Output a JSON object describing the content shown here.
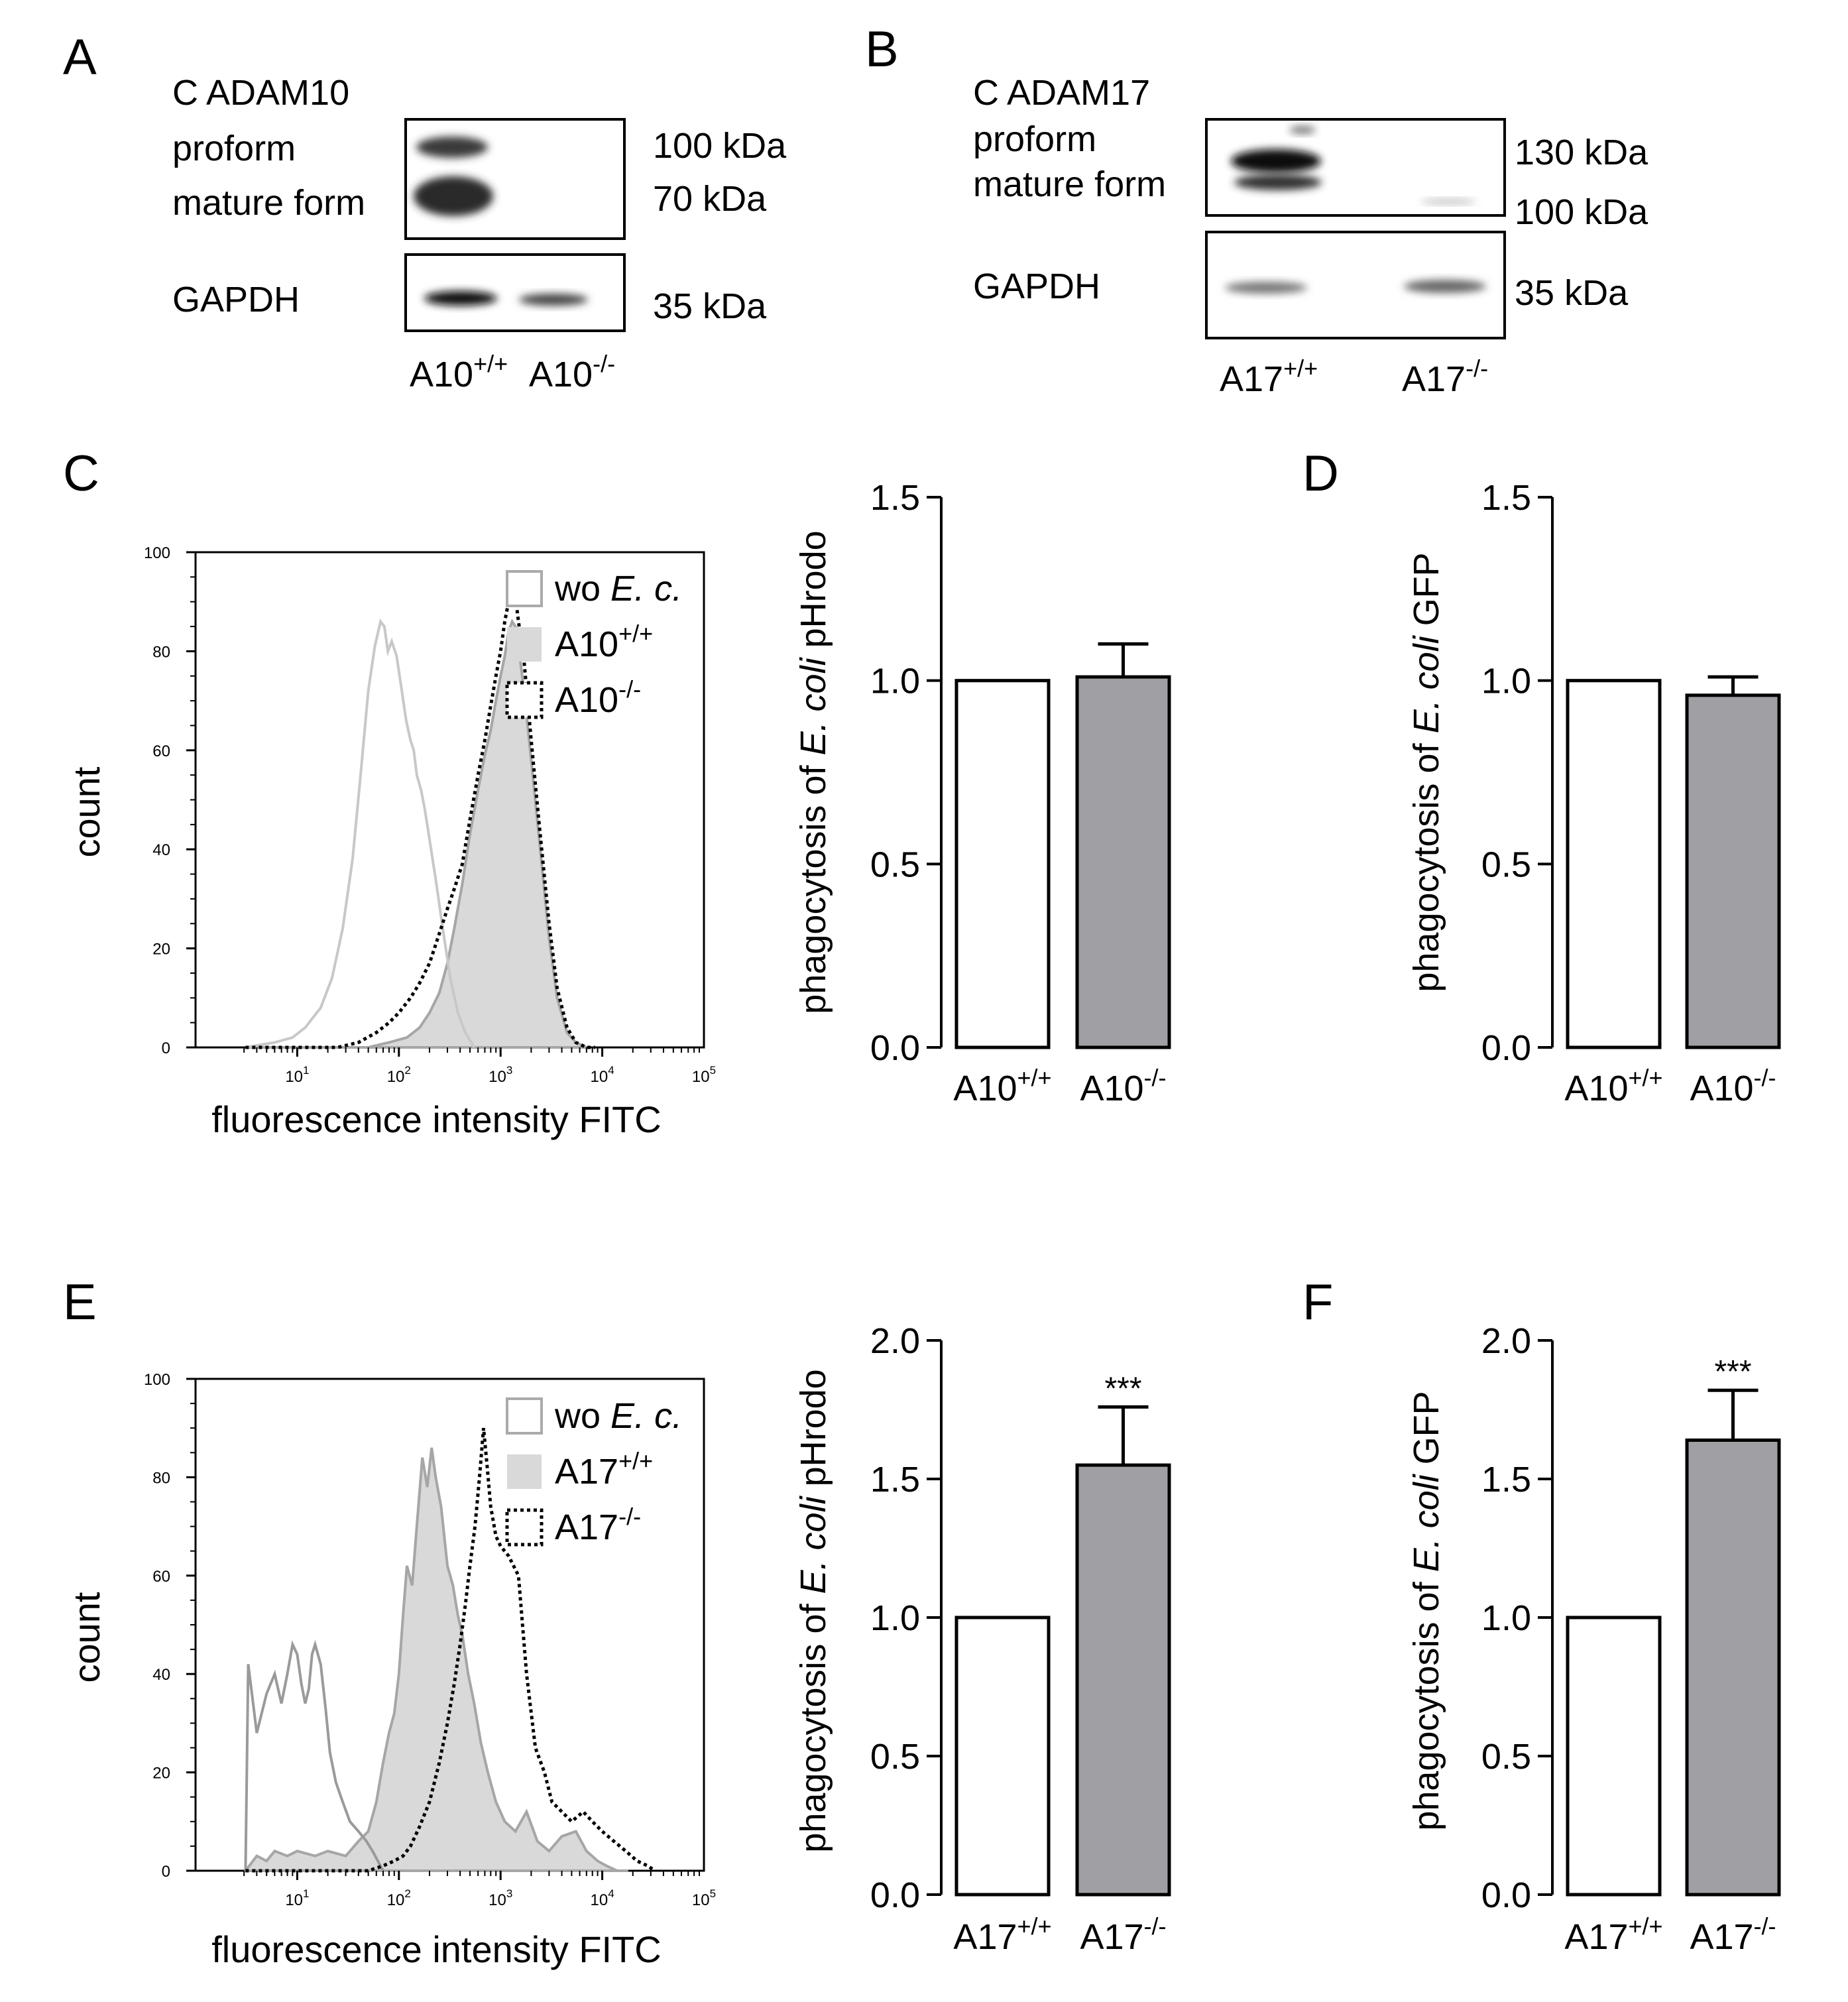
{
  "panels": {
    "A": {
      "letter": "A",
      "title": "C ADAM10",
      "band_labels": [
        "proform",
        "mature form"
      ],
      "loading_label": "GAPDH",
      "kda_upper": [
        "100 kDa",
        "70 kDa"
      ],
      "kda_lower": "35 kDa",
      "lanes": [
        {
          "base": "A10",
          "sup": "+/+"
        },
        {
          "base": "A10",
          "sup": "-/-"
        }
      ]
    },
    "B": {
      "letter": "B",
      "title": "C ADAM17",
      "band_labels": [
        "proform",
        "mature form"
      ],
      "loading_label": "GAPDH",
      "kda_upper": [
        "130 kDa",
        "100 kDa"
      ],
      "kda_lower": "35 kDa",
      "lanes": [
        {
          "base": "A17",
          "sup": "+/+"
        },
        {
          "base": "A17",
          "sup": "-/-"
        }
      ]
    }
  },
  "colors": {
    "bar_wt": "#ffffff",
    "bar_ko": "#a0a0a4",
    "hist_fill": "#d9d9d9",
    "hist_line": "#a6a6a6",
    "wo_line": "#c8c8c8",
    "wo_line_e": "#9a9a9a"
  },
  "chart_data": [
    {
      "id": "C-hist",
      "type": "area",
      "panel": "C",
      "xlabel": "fluorescence intensity FITC",
      "ylabel": "count",
      "xscale": "log",
      "xlim": [
        1,
        100000
      ],
      "ylim": [
        0,
        100
      ],
      "yticks": [
        0,
        20,
        40,
        60,
        80,
        100
      ],
      "xticks": [
        {
          "base": "10",
          "exp": "1"
        },
        {
          "base": "10",
          "exp": "2"
        },
        {
          "base": "10",
          "exp": "3"
        },
        {
          "base": "10",
          "exp": "4"
        },
        {
          "base": "10",
          "exp": "5"
        }
      ],
      "legend": [
        {
          "key": "wo",
          "pre": "wo ",
          "ital": "E. c.",
          "sup": ""
        },
        {
          "key": "wt",
          "pre": "A10",
          "ital": "",
          "sup": "+/+"
        },
        {
          "key": "ko",
          "pre": "A10",
          "ital": "",
          "sup": "-/-"
        }
      ],
      "series": [
        {
          "name": "wo E. c.",
          "style": "line",
          "x": [
            3.1,
            6,
            9,
            12,
            17,
            22,
            28,
            35,
            42,
            50,
            58,
            66,
            72,
            78,
            85,
            95,
            105,
            118,
            130,
            140,
            150,
            165,
            180,
            200,
            230,
            270,
            320,
            380,
            450,
            550
          ],
          "y": [
            0,
            1,
            2,
            4,
            8,
            14,
            24,
            38,
            55,
            72,
            81,
            86,
            85,
            80,
            82,
            79,
            73,
            66,
            62,
            60,
            55,
            52,
            48,
            42,
            34,
            24,
            14,
            7,
            3,
            0
          ]
        },
        {
          "name": "A10+/+",
          "style": "fill",
          "x": [
            3.1,
            50,
            80,
            120,
            160,
            200,
            250,
            300,
            350,
            420,
            500,
            600,
            700,
            800,
            900,
            1000,
            1100,
            1200,
            1300,
            1400,
            1500,
            1700,
            2000,
            2400,
            3000,
            3600,
            4500,
            5500,
            7000
          ],
          "y": [
            0,
            0,
            1,
            2,
            4,
            7,
            11,
            17,
            24,
            33,
            43,
            52,
            59,
            64,
            70,
            75,
            79,
            84,
            86,
            85,
            81,
            72,
            58,
            42,
            22,
            10,
            3,
            1,
            0
          ]
        },
        {
          "name": "A10-/-",
          "style": "dotted",
          "x": [
            3.1,
            25,
            40,
            60,
            80,
            100,
            130,
            160,
            200,
            250,
            300,
            350,
            420,
            500,
            600,
            700,
            800,
            900,
            1000,
            1100,
            1200,
            1300,
            1400,
            1500,
            1700,
            2000,
            2400,
            3000,
            3600,
            4500,
            5500,
            7000,
            8500
          ],
          "y": [
            0,
            0,
            1,
            3,
            5,
            7,
            10,
            13,
            17,
            23,
            28,
            32,
            37,
            46,
            55,
            62,
            69,
            75,
            80,
            86,
            90,
            92,
            91,
            86,
            78,
            62,
            45,
            25,
            12,
            4,
            1,
            0,
            0
          ]
        }
      ]
    },
    {
      "id": "C-bar",
      "type": "bar",
      "panel": "C",
      "ylabel_pre": "phagocytosis of ",
      "ylabel_ital": "E. coli",
      "ylabel_post": " pHrodo",
      "ylim": [
        0,
        1.5
      ],
      "yticks": [
        "0.0",
        "0.5",
        "1.0",
        "1.5"
      ],
      "categories": [
        {
          "base": "A10",
          "sup": "+/+"
        },
        {
          "base": "A10",
          "sup": "-/-"
        }
      ],
      "values": [
        1.0,
        1.01
      ],
      "errors": [
        0,
        0.09
      ],
      "significance": [
        "",
        ""
      ]
    },
    {
      "id": "D-bar",
      "type": "bar",
      "panel": "D",
      "letter": "D",
      "ylabel_pre": "phagocytosis of ",
      "ylabel_ital": "E. coli",
      "ylabel_post": " GFP",
      "ylim": [
        0,
        1.5
      ],
      "yticks": [
        "0.0",
        "0.5",
        "1.0",
        "1.5"
      ],
      "categories": [
        {
          "base": "A10",
          "sup": "+/+"
        },
        {
          "base": "A10",
          "sup": "-/-"
        }
      ],
      "values": [
        1.0,
        0.96
      ],
      "errors": [
        0,
        0.05
      ],
      "significance": [
        "",
        ""
      ]
    },
    {
      "id": "E-hist",
      "type": "area",
      "panel": "E",
      "xlabel": "fluorescence intensity FITC",
      "ylabel": "count",
      "xscale": "log",
      "xlim": [
        1,
        100000
      ],
      "ylim": [
        0,
        100
      ],
      "yticks": [
        0,
        20,
        40,
        60,
        80,
        100
      ],
      "xticks": [
        {
          "base": "10",
          "exp": "1"
        },
        {
          "base": "10",
          "exp": "2"
        },
        {
          "base": "10",
          "exp": "3"
        },
        {
          "base": "10",
          "exp": "4"
        },
        {
          "base": "10",
          "exp": "5"
        }
      ],
      "legend": [
        {
          "key": "wo",
          "pre": "wo ",
          "ital": "E. c.",
          "sup": ""
        },
        {
          "key": "wt",
          "pre": "A17",
          "ital": "",
          "sup": "+/+"
        },
        {
          "key": "ko",
          "pre": "A17",
          "ital": "",
          "sup": "-/-"
        }
      ],
      "series": [
        {
          "name": "wo E. c.",
          "style": "line",
          "x": [
            3.1,
            3.3,
            4,
            5,
            6,
            7,
            8,
            9,
            10,
            11,
            12,
            13,
            14,
            15,
            17,
            19,
            21,
            24,
            28,
            33,
            40,
            48,
            55,
            62,
            70
          ],
          "y": [
            0,
            42,
            28,
            36,
            40,
            34,
            40,
            46,
            44,
            38,
            34,
            37,
            44,
            46,
            42,
            33,
            24,
            18,
            14,
            10,
            8,
            6,
            4,
            2,
            0
          ]
        },
        {
          "name": "A17+/+",
          "style": "fill",
          "x": [
            3.1,
            4,
            5,
            6,
            8,
            10,
            15,
            20,
            30,
            40,
            50,
            60,
            70,
            80,
            90,
            100,
            110,
            120,
            135,
            150,
            170,
            190,
            210,
            230,
            260,
            300,
            340,
            380,
            420,
            480,
            550,
            640,
            750,
            900,
            1100,
            1400,
            1800,
            2300,
            3000,
            4000,
            5500,
            7000,
            9000,
            11000,
            14000,
            18000
          ],
          "y": [
            0,
            3,
            2,
            4,
            3,
            4,
            3,
            4,
            3,
            6,
            8,
            14,
            22,
            28,
            32,
            40,
            52,
            62,
            58,
            70,
            84,
            78,
            86,
            80,
            74,
            62,
            58,
            52,
            48,
            40,
            34,
            26,
            20,
            14,
            10,
            8,
            12,
            6,
            4,
            7,
            8,
            4,
            2,
            1,
            0,
            0
          ]
        },
        {
          "name": "A17-/-",
          "style": "dotted",
          "x": [
            3.1,
            30,
            50,
            70,
            90,
            110,
            130,
            160,
            200,
            250,
            300,
            350,
            400,
            450,
            500,
            560,
            620,
            680,
            740,
            800,
            900,
            1000,
            1200,
            1500,
            1800,
            2200,
            2700,
            3200,
            4000,
            5000,
            6500,
            8000,
            10000,
            13000,
            17000,
            22000,
            28000,
            33000
          ],
          "y": [
            0,
            0,
            0,
            1,
            2,
            3,
            5,
            9,
            14,
            22,
            30,
            38,
            46,
            54,
            62,
            70,
            80,
            90,
            82,
            74,
            68,
            66,
            64,
            60,
            40,
            25,
            20,
            14,
            12,
            10,
            12,
            10,
            8,
            6,
            4,
            2,
            1,
            0
          ]
        }
      ]
    },
    {
      "id": "E-bar",
      "type": "bar",
      "panel": "E",
      "ylabel_pre": "phagocytosis of ",
      "ylabel_ital": "E. coli",
      "ylabel_post": " pHrodo",
      "ylim": [
        0,
        2.0
      ],
      "yticks": [
        "0.0",
        "0.5",
        "1.0",
        "1.5",
        "2.0"
      ],
      "categories": [
        {
          "base": "A17",
          "sup": "+/+"
        },
        {
          "base": "A17",
          "sup": "-/-"
        }
      ],
      "values": [
        1.0,
        1.55
      ],
      "errors": [
        0,
        0.21
      ],
      "significance": [
        "",
        "***"
      ]
    },
    {
      "id": "F-bar",
      "type": "bar",
      "panel": "F",
      "letter": "F",
      "ylabel_pre": "phagocytosis of ",
      "ylabel_ital": "E. coli",
      "ylabel_post": " GFP",
      "ylim": [
        0,
        2.0
      ],
      "yticks": [
        "0.0",
        "0.5",
        "1.0",
        "1.5",
        "2.0"
      ],
      "categories": [
        {
          "base": "A17",
          "sup": "+/+"
        },
        {
          "base": "A17",
          "sup": "-/-"
        }
      ],
      "values": [
        1.0,
        1.64
      ],
      "errors": [
        0,
        0.18
      ],
      "significance": [
        "",
        "***"
      ]
    }
  ],
  "letters": {
    "C": "C",
    "E": "E"
  }
}
